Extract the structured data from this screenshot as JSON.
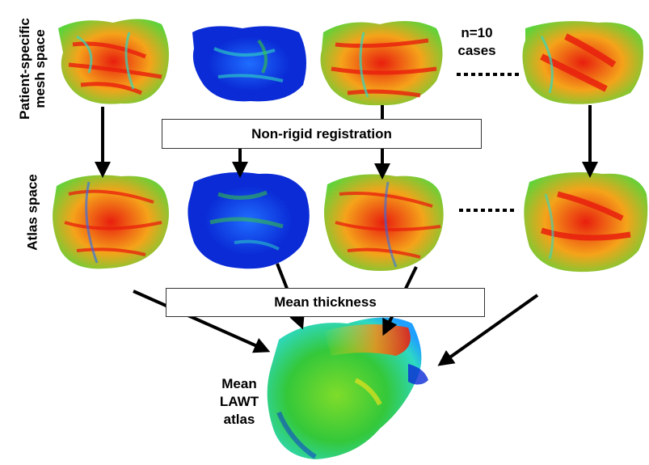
{
  "labels": {
    "row_patient": [
      "Patient-specific",
      "mesh space"
    ],
    "row_atlas": "Atlas space",
    "registration": "Non-rigid registration",
    "mean_thickness": "Mean thickness",
    "cases": [
      "n=10",
      "cases"
    ],
    "mean_atlas": [
      "Mean",
      "LAWT",
      "atlas"
    ]
  },
  "colors": {
    "thickness_scale": [
      "#0a2bd6",
      "#1fa0ff",
      "#2ed9c2",
      "#34c83a",
      "#a8e21c",
      "#ffe51a",
      "#ff8a10",
      "#e81e0e"
    ],
    "arrow": "#000000",
    "box_border": "#333333"
  },
  "meshes": {
    "patient_space": [
      {
        "id": "patient-1",
        "dominant": "red-green"
      },
      {
        "id": "patient-2",
        "dominant": "blue"
      },
      {
        "id": "patient-3",
        "dominant": "red-green"
      },
      {
        "id": "patient-4",
        "dominant": "red-green"
      }
    ],
    "atlas_space": [
      {
        "id": "atlas-1",
        "dominant": "red-green"
      },
      {
        "id": "atlas-2",
        "dominant": "blue"
      },
      {
        "id": "atlas-3",
        "dominant": "red-green"
      },
      {
        "id": "atlas-4",
        "dominant": "red-green"
      }
    ],
    "mean_atlas": {
      "id": "mean-atlas",
      "dominant": "green"
    }
  }
}
